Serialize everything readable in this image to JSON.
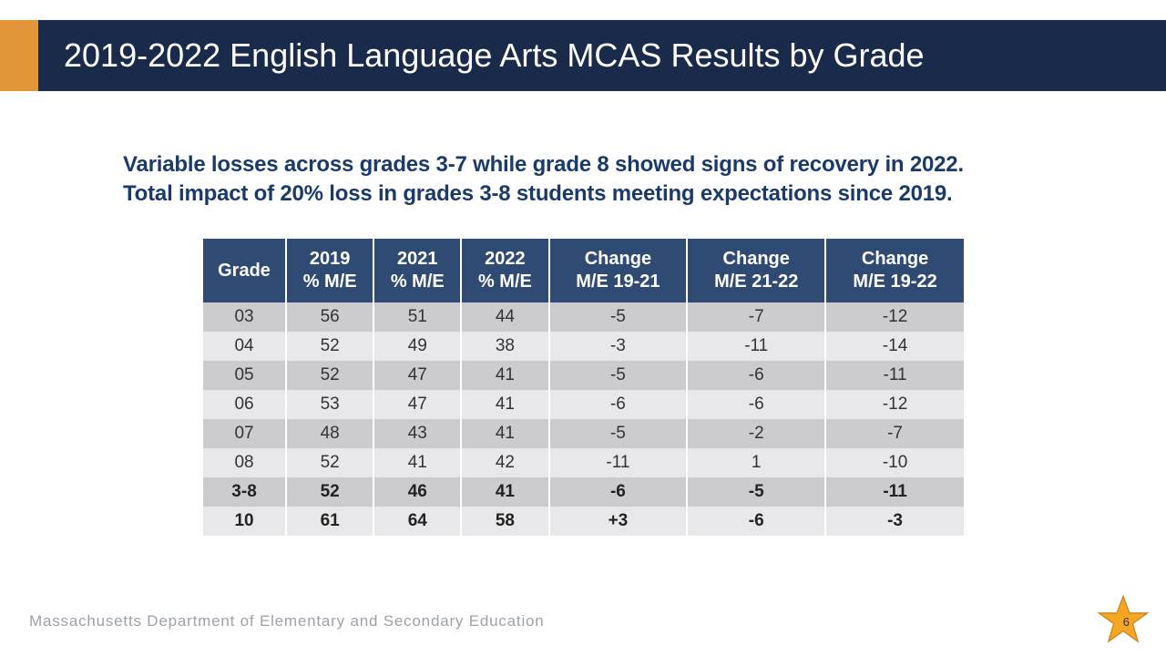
{
  "header": {
    "title": "2019-2022 English Language Arts MCAS Results by Grade",
    "accent_color": "#e3953a",
    "band_color": "#1a2a4a",
    "title_color": "#ffffff",
    "title_fontsize": 36
  },
  "summary": {
    "line1": "Variable losses across grades 3-7 while grade 8 showed signs of recovery in 2022.",
    "line2": "Total impact of 20% loss in grades 3-8 students meeting expectations since 2019.",
    "color": "#1a3a6a",
    "fontsize": 24,
    "fontweight": 700
  },
  "table": {
    "type": "table",
    "header_bg": "#2f4a73",
    "header_color": "#ffffff",
    "row_odd_bg": "#ccccd0",
    "row_even_bg": "#e8e8eb",
    "border_color": "#ffffff",
    "cell_fontsize": 19,
    "header_fontsize": 20,
    "columns": [
      {
        "label_line1": "Grade",
        "label_line2": "",
        "class": "col-grade"
      },
      {
        "label_line1": "2019",
        "label_line2": "% M/E",
        "class": "col-year"
      },
      {
        "label_line1": "2021",
        "label_line2": "% M/E",
        "class": "col-year"
      },
      {
        "label_line1": "2022",
        "label_line2": "% M/E",
        "class": "col-year"
      },
      {
        "label_line1": "Change",
        "label_line2": "M/E 19-21",
        "class": "col-change"
      },
      {
        "label_line1": "Change",
        "label_line2": "M/E 21-22",
        "class": "col-change"
      },
      {
        "label_line1": "Change",
        "label_line2": "M/E 19-22",
        "class": "col-change"
      }
    ],
    "rows": [
      {
        "bold": false,
        "cells": [
          "03",
          "56",
          "51",
          "44",
          "-5",
          "-7",
          "-12"
        ]
      },
      {
        "bold": false,
        "cells": [
          "04",
          "52",
          "49",
          "38",
          "-3",
          "-11",
          "-14"
        ]
      },
      {
        "bold": false,
        "cells": [
          "05",
          "52",
          "47",
          "41",
          "-5",
          "-6",
          "-11"
        ]
      },
      {
        "bold": false,
        "cells": [
          "06",
          "53",
          "47",
          "41",
          "-6",
          "-6",
          "-12"
        ]
      },
      {
        "bold": false,
        "cells": [
          "07",
          "48",
          "43",
          "41",
          "-5",
          "-2",
          "-7"
        ]
      },
      {
        "bold": false,
        "cells": [
          "08",
          "52",
          "41",
          "42",
          "-11",
          "1",
          "-10"
        ]
      },
      {
        "bold": true,
        "cells": [
          "3-8",
          "52",
          "46",
          "41",
          "-6",
          "-5",
          "-11"
        ]
      },
      {
        "bold": true,
        "cells": [
          "10",
          "61",
          "64",
          "58",
          "+3",
          "-6",
          "-3"
        ]
      }
    ]
  },
  "footer": {
    "org": "Massachusetts Department of Elementary and Secondary Education",
    "org_color": "#9da2a8",
    "page_number": "6",
    "star_fill": "#f5a623",
    "star_stroke": "#c77f18"
  }
}
